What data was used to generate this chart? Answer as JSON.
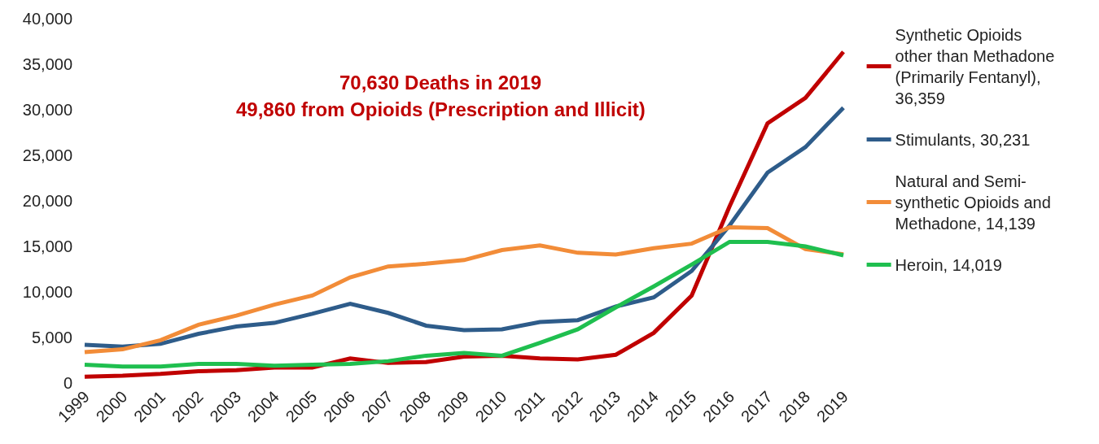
{
  "chart_data": {
    "type": "line",
    "title": "70,630 Deaths in 2019",
    "subtitle": "49,860 from Opioids (Prescription and Illicit)",
    "categories": [
      "1999",
      "2000",
      "2001",
      "2002",
      "2003",
      "2004",
      "2005",
      "2006",
      "2007",
      "2008",
      "2009",
      "2010",
      "2011",
      "2012",
      "2013",
      "2014",
      "2015",
      "2016",
      "2017",
      "2018",
      "2019"
    ],
    "series": [
      {
        "name": "Synthetic Opioids other than Methadone (Primarily Fentanyl), 36,359",
        "color": "#c00000",
        "values": [
          700,
          800,
          1000,
          1300,
          1400,
          1700,
          1700,
          2700,
          2200,
          2300,
          2900,
          3000,
          2700,
          2600,
          3100,
          5500,
          9600,
          19400,
          28500,
          31300,
          36359
        ]
      },
      {
        "name": "Stimulants, 30,231",
        "color": "#2e5c8a",
        "values": [
          4200,
          4000,
          4300,
          5400,
          6200,
          6600,
          7600,
          8700,
          7700,
          6300,
          5800,
          5900,
          6700,
          6900,
          8400,
          9400,
          12300,
          17300,
          23100,
          25900,
          30231
        ]
      },
      {
        "name": "Natural and Semi-synthetic Opioids and Methadone, 14,139",
        "color": "#f28c38",
        "values": [
          3400,
          3700,
          4700,
          6400,
          7400,
          8600,
          9600,
          11600,
          12800,
          13100,
          13500,
          14600,
          15100,
          14300,
          14100,
          14800,
          15300,
          17100,
          17000,
          14700,
          14139
        ]
      },
      {
        "name": "Heroin, 14,019",
        "color": "#1fbf4f",
        "values": [
          2000,
          1800,
          1800,
          2100,
          2100,
          1900,
          2000,
          2100,
          2400,
          3000,
          3300,
          3000,
          4400,
          5900,
          8300,
          10600,
          13000,
          15500,
          15500,
          15000,
          14019
        ]
      }
    ],
    "ylim": [
      0,
      40000
    ],
    "yticks": [
      {
        "value": 0,
        "label": "0"
      },
      {
        "value": 5000,
        "label": "5,000"
      },
      {
        "value": 10000,
        "label": "10,000"
      },
      {
        "value": 15000,
        "label": "15,000"
      },
      {
        "value": 20000,
        "label": "20,000"
      },
      {
        "value": 25000,
        "label": "25,000"
      },
      {
        "value": 30000,
        "label": "30,000"
      },
      {
        "value": 35000,
        "label": "35,000"
      },
      {
        "value": 40000,
        "label": "40,000"
      }
    ],
    "legend": "right",
    "marker": "none",
    "line_style": "solid"
  }
}
